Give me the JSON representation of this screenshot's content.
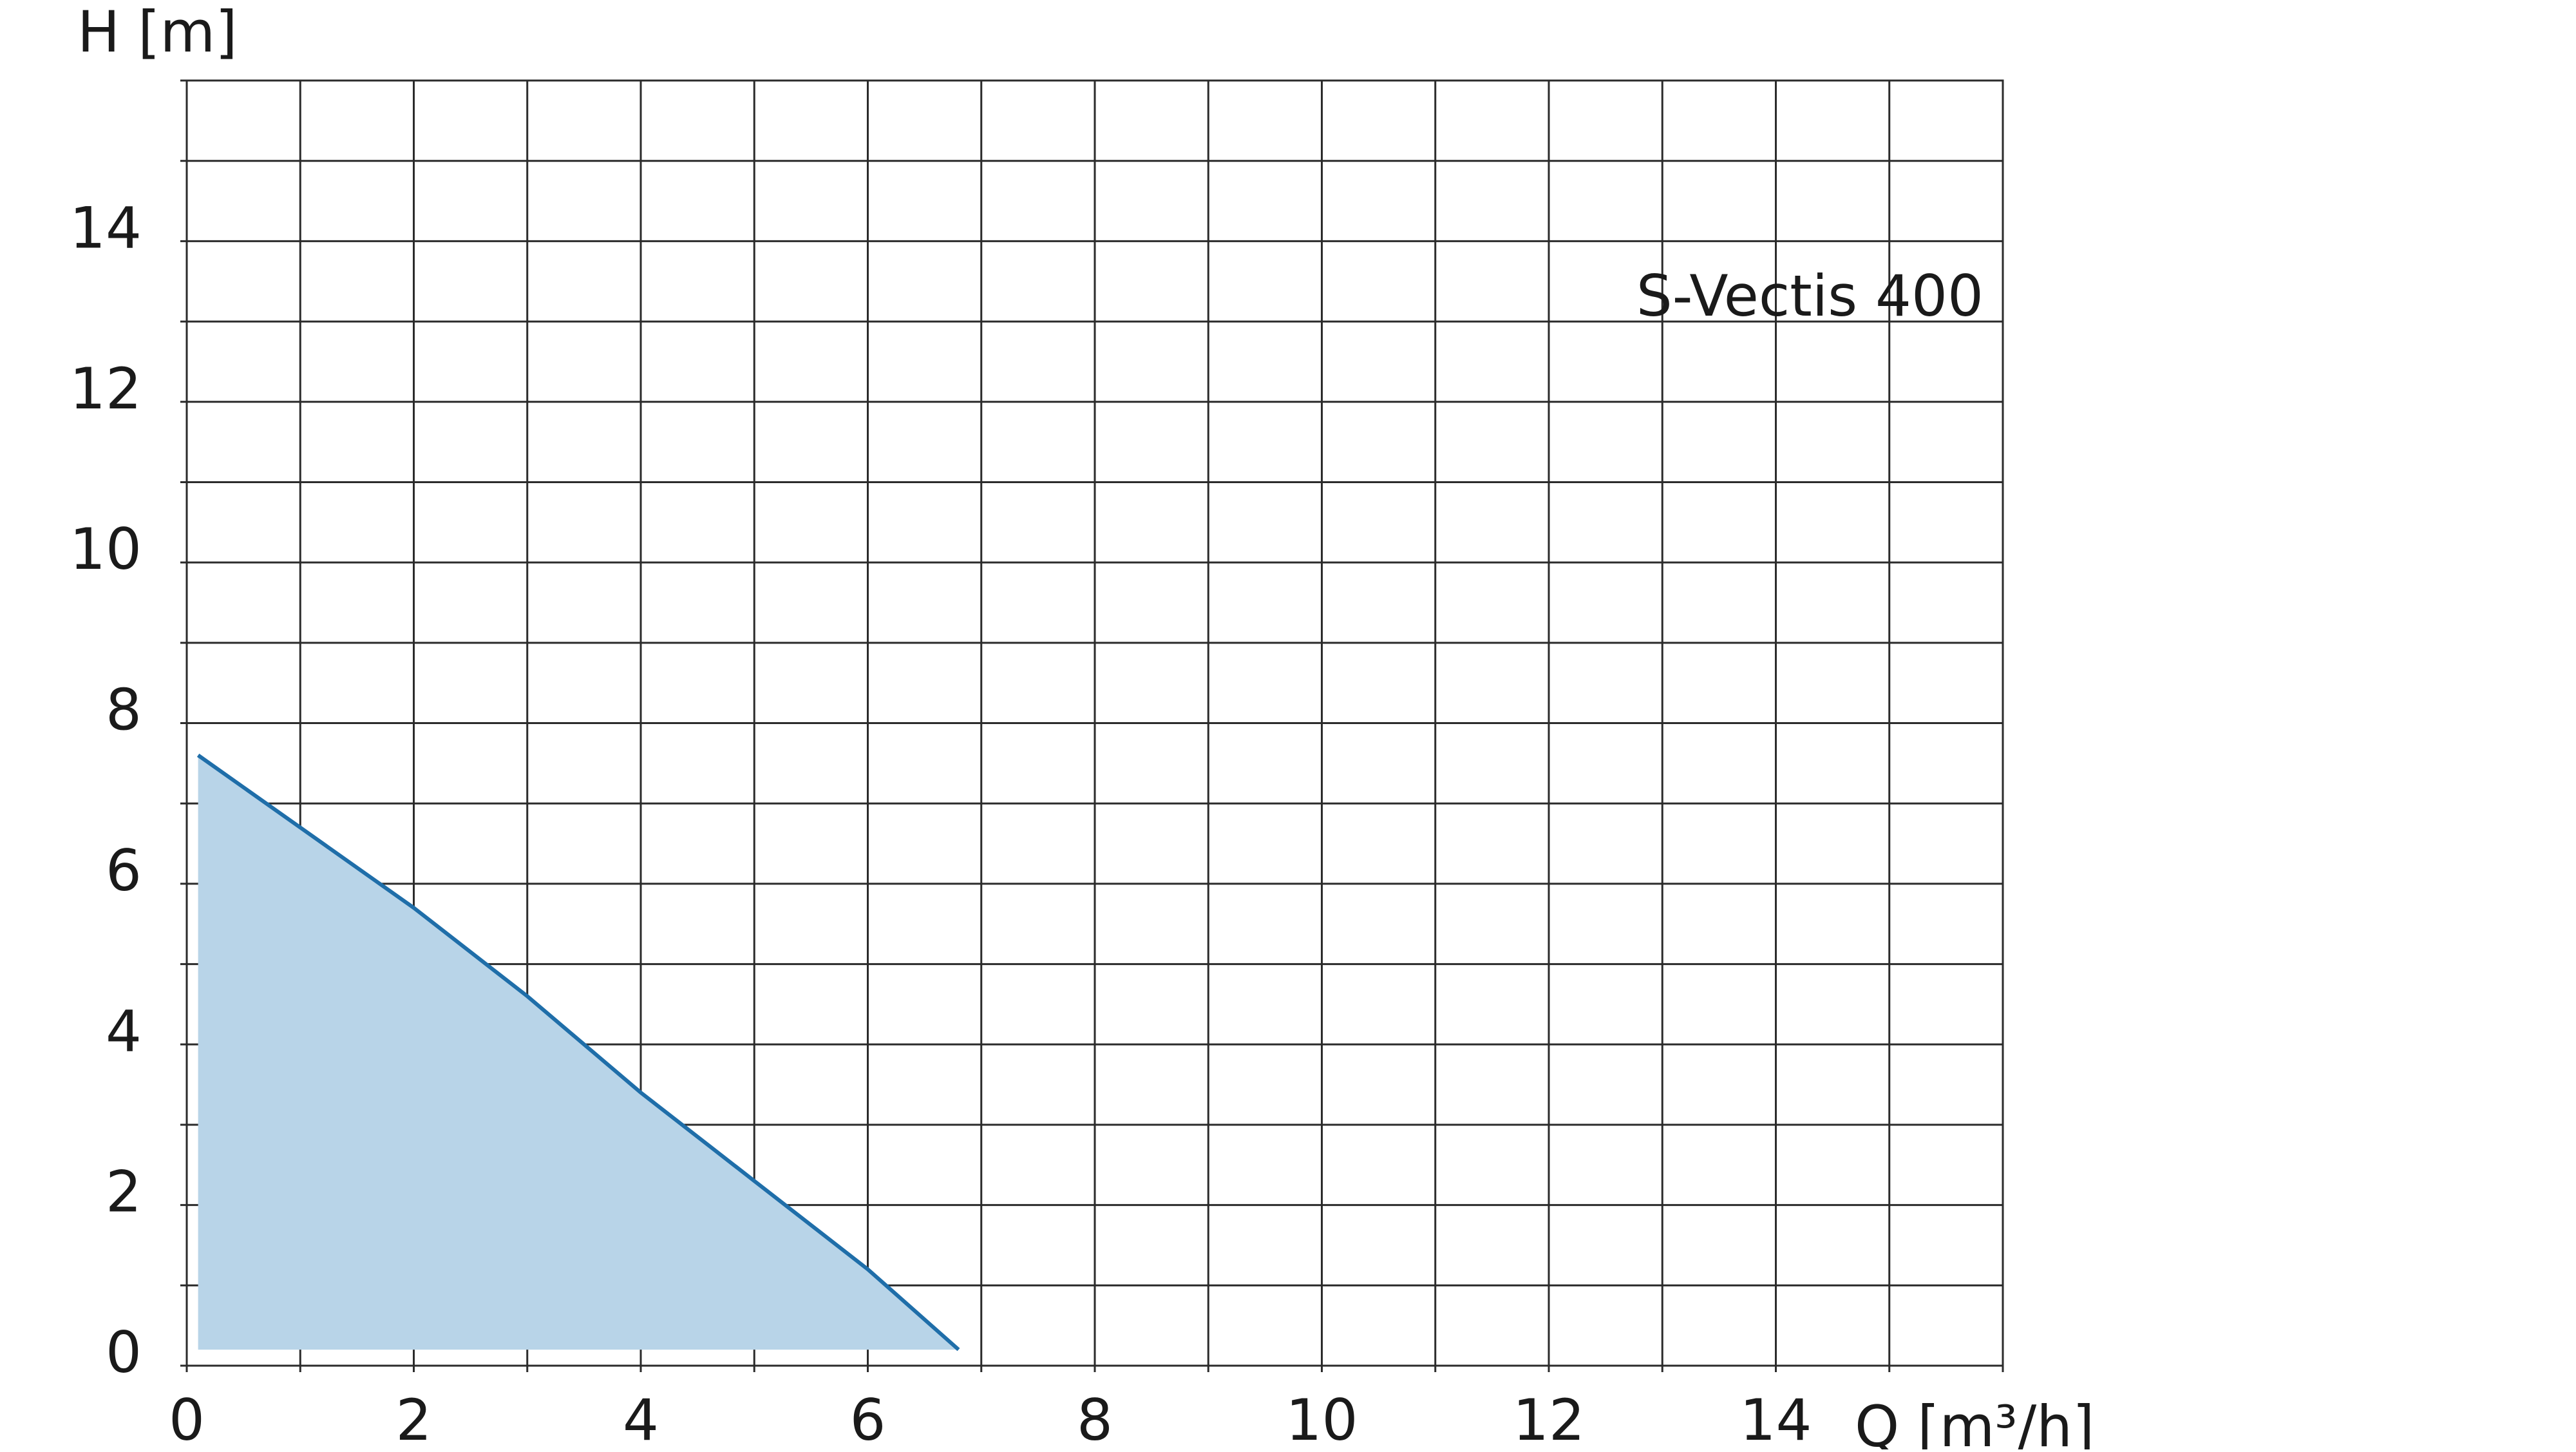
{
  "chart_data": {
    "type": "area",
    "xlabel": "Q [m³/h]",
    "ylabel": "H [m]",
    "xlim": [
      0,
      16
    ],
    "ylim": [
      0,
      16
    ],
    "x_ticks": [
      0,
      2,
      4,
      6,
      8,
      10,
      12,
      14
    ],
    "y_ticks": [
      0,
      2,
      4,
      6,
      8,
      10,
      12,
      14
    ],
    "x_tick_labels": [
      "0",
      "2",
      "4",
      "6",
      "8",
      "10",
      "12",
      "14"
    ],
    "y_tick_labels": [
      "0",
      "2",
      "4",
      "6",
      "8",
      "10",
      "12",
      "14"
    ],
    "grid": true,
    "series": [
      {
        "name": "S-Vectis 400",
        "x": [
          0.1,
          1,
          2,
          3,
          4,
          5,
          6,
          6.8
        ],
        "y": [
          7.6,
          6.7,
          5.7,
          4.6,
          3.4,
          2.3,
          1.2,
          0.2
        ],
        "color": "#1f6ea9",
        "fill": "#b8d4e8"
      }
    ]
  }
}
